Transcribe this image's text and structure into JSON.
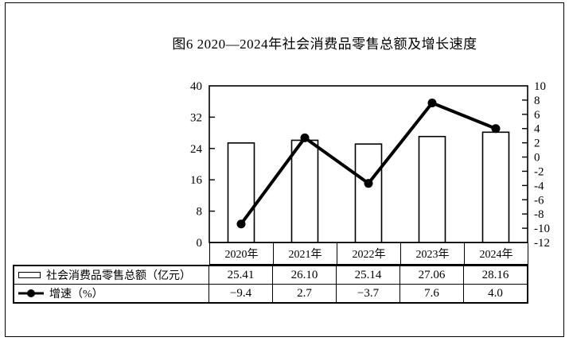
{
  "page": {
    "background": "#ffffff",
    "border_color": "#000000"
  },
  "chart_data": {
    "type": "bar+line",
    "title": "图6  2020—2024年社会消费品零售总额及增长速度",
    "categories": [
      "2020年",
      "2021年",
      "2022年",
      "2023年",
      "2024年"
    ],
    "series": [
      {
        "name": "社会消费品零售总额（亿元）",
        "type": "bar",
        "axis": "left",
        "values": [
          25.41,
          26.1,
          25.14,
          27.06,
          28.16
        ]
      },
      {
        "name": "增速（%）",
        "type": "line",
        "axis": "right",
        "values": [
          -9.4,
          2.7,
          -3.7,
          7.6,
          4.0
        ]
      }
    ],
    "left_axis": {
      "min": 0,
      "max": 40,
      "ticks": [
        0,
        8,
        16,
        24,
        32,
        40
      ]
    },
    "right_axis": {
      "min": -12,
      "max": 10,
      "ticks": [
        10,
        8,
        6,
        4,
        2,
        0,
        -2,
        -4,
        -6,
        -8,
        -10,
        -12
      ]
    },
    "grid": false,
    "legend_position": "table-left-column",
    "colors": {
      "bar_fill": "#ffffff",
      "bar_stroke": "#000000",
      "line": "#000000",
      "marker": "#000000",
      "text": "#000000"
    }
  },
  "table": {
    "rows": [
      {
        "icon": "bar-series-icon",
        "label": "社会消费品零售总额（亿元）",
        "values": [
          "25.41",
          "26.10",
          "25.14",
          "27.06",
          "28.16"
        ]
      },
      {
        "icon": "line-series-icon",
        "label": "增速（%）",
        "values": [
          "−9.4",
          "2.7",
          "−3.7",
          "7.6",
          "4.0"
        ]
      }
    ]
  }
}
